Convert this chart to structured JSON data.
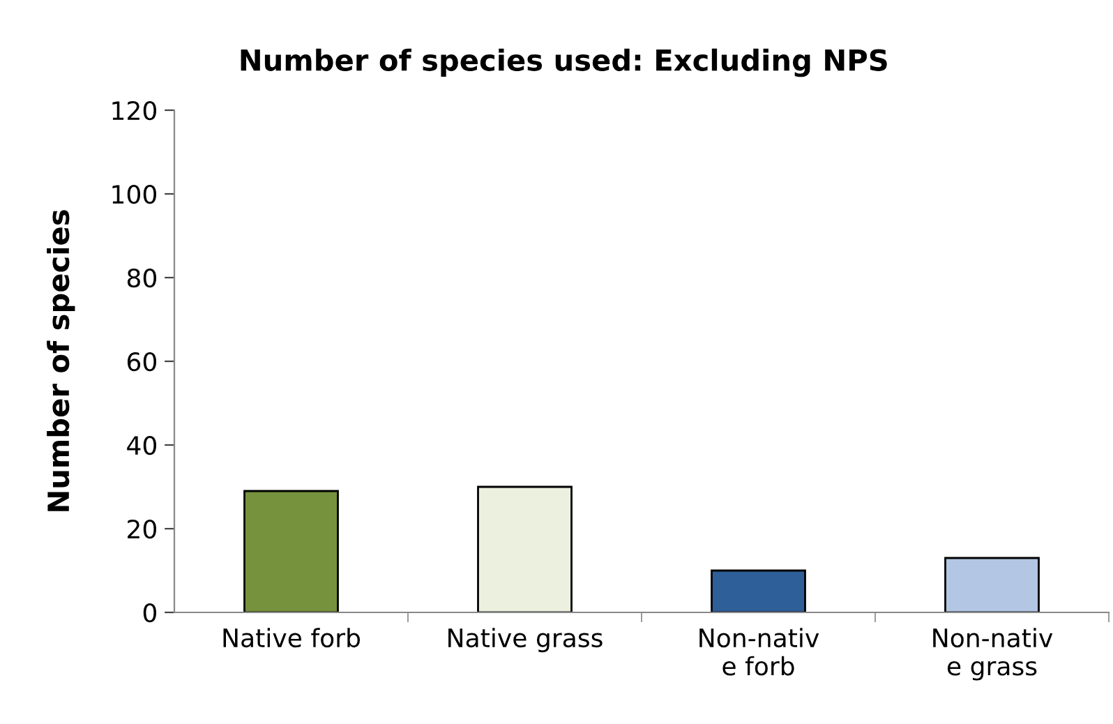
{
  "chart_data": {
    "type": "bar",
    "title": "Number of species used: Excluding NPS",
    "ylabel": "Number of species",
    "categories": [
      "Native forb",
      "Native grass",
      "Non-nativ\ne forb",
      "Non-nativ\ne grass"
    ],
    "values": [
      29,
      30,
      10,
      13
    ],
    "colors": [
      "#77923c",
      "#ebf1de",
      "#2f5f98",
      "#b3c6e4"
    ],
    "ylim": [
      0,
      120
    ],
    "yticks": [
      0,
      20,
      40,
      60,
      80,
      100,
      120
    ],
    "grid": false
  }
}
